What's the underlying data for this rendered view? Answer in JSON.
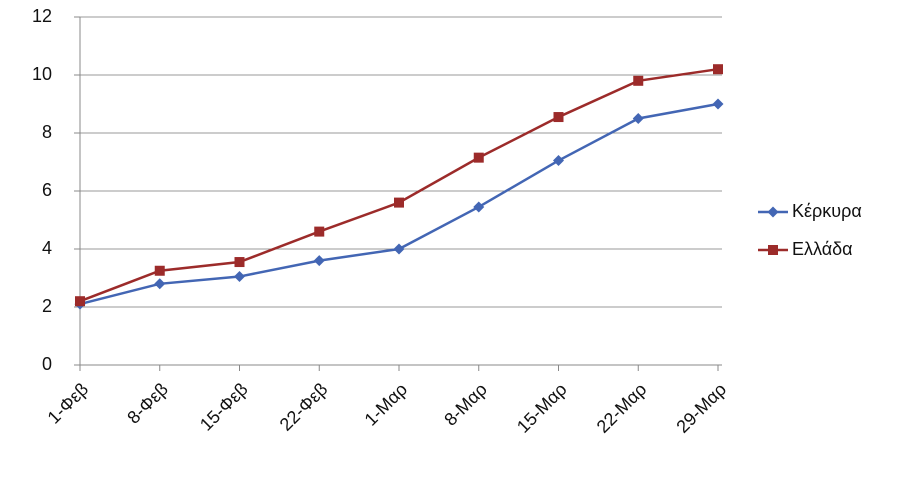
{
  "chart_data": {
    "type": "line",
    "categories": [
      "1-Φεβ",
      "8-Φεβ",
      "15-Φεβ",
      "22-Φεβ",
      "1-Μαρ",
      "8-Μαρ",
      "15-Μαρ",
      "22-Μαρ",
      "29-Μαρ"
    ],
    "series": [
      {
        "name": "Κέρκυρα",
        "color": "#4366b4",
        "marker": "diamond",
        "values": [
          2.1,
          2.8,
          3.05,
          3.6,
          4.0,
          5.45,
          7.05,
          8.5,
          9.0
        ]
      },
      {
        "name": "Ελλάδα",
        "color": "#9c2b2a",
        "marker": "square",
        "values": [
          2.2,
          3.25,
          3.55,
          4.6,
          5.6,
          7.15,
          8.55,
          9.8,
          10.2
        ]
      }
    ],
    "ylim": [
      0,
      12
    ],
    "yticks": [
      0,
      2,
      4,
      6,
      8,
      10,
      12
    ],
    "grid": true,
    "legend": "right"
  }
}
